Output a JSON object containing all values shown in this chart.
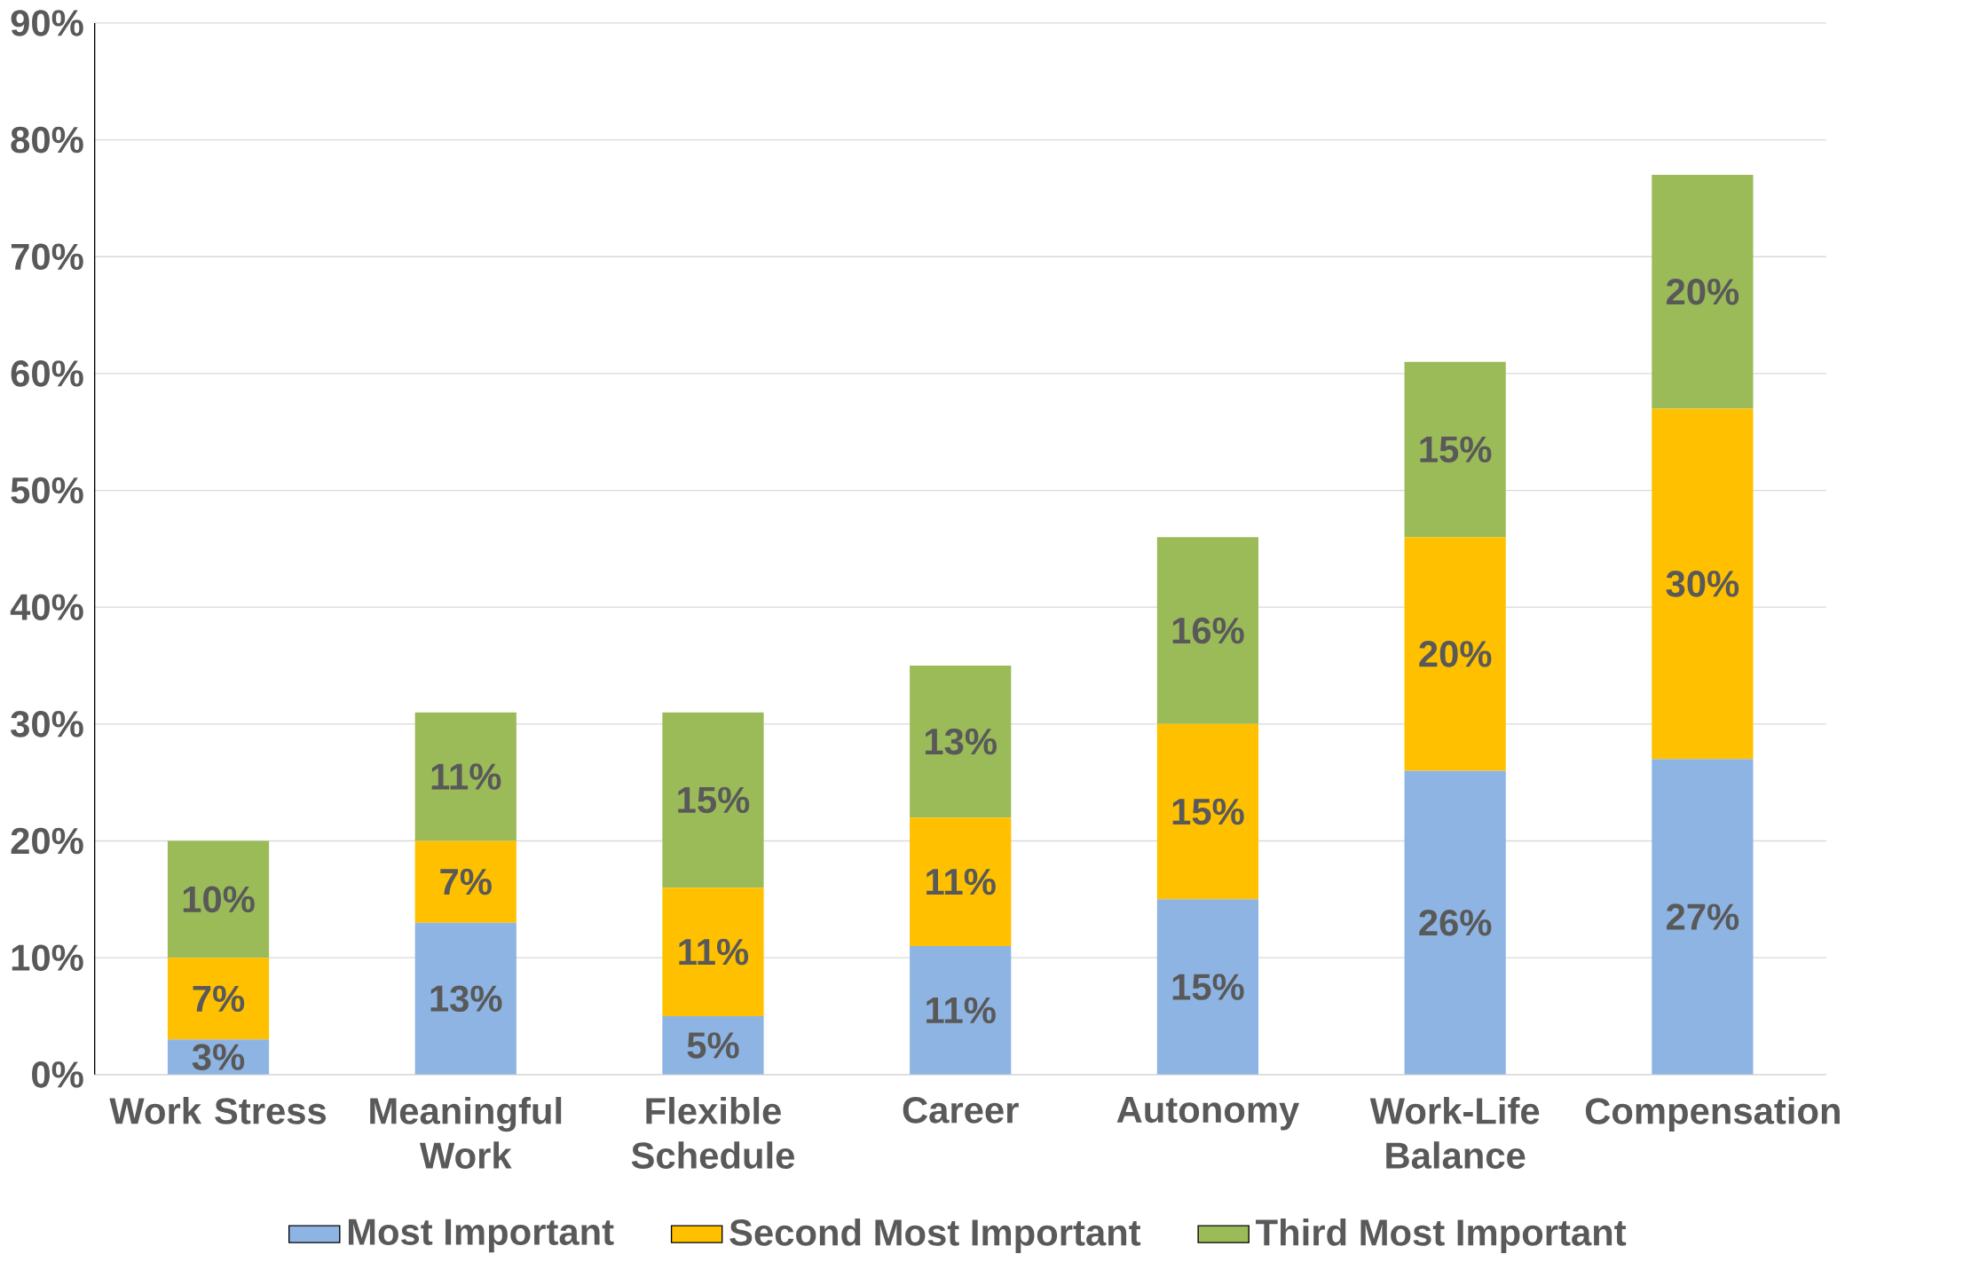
{
  "chart_data": {
    "type": "bar",
    "stacked": true,
    "categories": [
      "Work Stress",
      "Meaningful Work",
      "Flexible Schedule",
      "Career",
      "Autonomy",
      "Work-Life Balance",
      "Compensation"
    ],
    "series": [
      {
        "name": "Most Important",
        "color": "#8eb4e3",
        "values": [
          3,
          13,
          5,
          11,
          15,
          26,
          27
        ],
        "value_labels": [
          "3%",
          "13%",
          "5%",
          "11%",
          "15%",
          "26%",
          "27%"
        ]
      },
      {
        "name": "Second Most Important",
        "color": "#ffc000",
        "values": [
          7,
          7,
          11,
          11,
          15,
          20,
          30
        ],
        "value_labels": [
          "7%",
          "7%",
          "11%",
          "11%",
          "15%",
          "20%",
          "30%"
        ]
      },
      {
        "name": "Third Most Important",
        "color": "#9bbb59",
        "values": [
          10,
          11,
          15,
          13,
          16,
          15,
          20
        ],
        "value_labels": [
          "10%",
          "11%",
          "15%",
          "13%",
          "16%",
          "15%",
          "20%"
        ]
      }
    ],
    "ylim": [
      0,
      90
    ],
    "yticks": [
      {
        "value": 0,
        "label": "0%"
      },
      {
        "value": 10,
        "label": "10%"
      },
      {
        "value": 20,
        "label": "20%"
      },
      {
        "value": 30,
        "label": "30%"
      },
      {
        "value": 40,
        "label": "40%"
      },
      {
        "value": 50,
        "label": "50%"
      },
      {
        "value": 60,
        "label": "60%"
      },
      {
        "value": 70,
        "label": "70%"
      },
      {
        "value": 80,
        "label": "80%"
      },
      {
        "value": 90,
        "label": "90%"
      }
    ],
    "grid": "y",
    "legend": "bottom"
  }
}
